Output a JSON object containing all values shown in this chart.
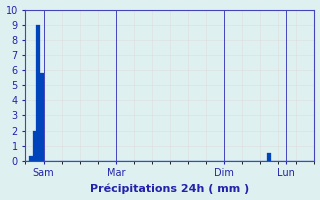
{
  "values": [
    0,
    0.3,
    2.0,
    9.0,
    5.8,
    0,
    0,
    0,
    0,
    0,
    0,
    0,
    0,
    0,
    0,
    0,
    0,
    0,
    0,
    0,
    0,
    0,
    0,
    0,
    0,
    0,
    0,
    0,
    0,
    0,
    0,
    0,
    0,
    0,
    0,
    0,
    0,
    0,
    0,
    0,
    0,
    0,
    0,
    0,
    0,
    0,
    0,
    0,
    0,
    0,
    0,
    0,
    0,
    0,
    0,
    0,
    0,
    0,
    0,
    0,
    0,
    0,
    0,
    0,
    0,
    0,
    0,
    0.5,
    0,
    0,
    0,
    0,
    0,
    0,
    0,
    0,
    0,
    0,
    0,
    0
  ],
  "n_bars": 80,
  "bar_color": "#0044bb",
  "background_color": "#dff0f0",
  "grid_color_minor": "#dddddd",
  "grid_color_major": "#bbbbbb",
  "axis_color": "#4444bb",
  "text_color": "#2222aa",
  "xlabel": "Précipitations 24h ( mm )",
  "ylim": [
    0,
    10
  ],
  "yticks": [
    0,
    1,
    2,
    3,
    4,
    5,
    6,
    7,
    8,
    9,
    10
  ],
  "xtick_positions": [
    5,
    25,
    55,
    72
  ],
  "xtick_labels": [
    "Sam",
    "Mar",
    "Dim",
    "Lun"
  ],
  "vline_positions": [
    5,
    25,
    55,
    72
  ]
}
